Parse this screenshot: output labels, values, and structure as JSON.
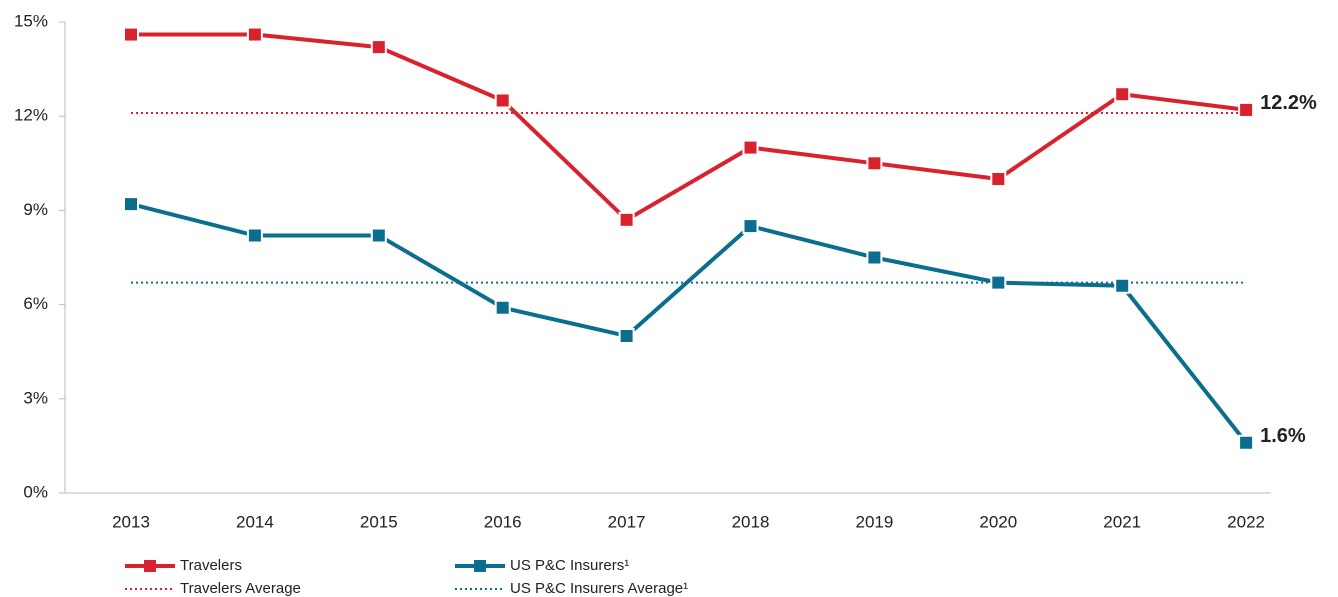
{
  "chart_data": {
    "type": "line",
    "categories": [
      "2013",
      "2014",
      "2015",
      "2016",
      "2017",
      "2018",
      "2019",
      "2020",
      "2021",
      "2022"
    ],
    "series": [
      {
        "name": "Travelers",
        "color": "#d8232f",
        "values": [
          14.6,
          14.6,
          14.2,
          12.5,
          8.7,
          11.0,
          10.5,
          10.0,
          12.7,
          12.2
        ],
        "value_labels": [
          null,
          null,
          null,
          null,
          null,
          null,
          null,
          null,
          null,
          "12.2%"
        ]
      },
      {
        "name": "US P&C Insurers¹",
        "color": "#0b6e8e",
        "values": [
          9.2,
          8.2,
          8.2,
          5.9,
          5.0,
          8.5,
          7.5,
          6.7,
          6.6,
          1.6
        ],
        "value_labels": [
          null,
          null,
          null,
          null,
          null,
          null,
          null,
          null,
          null,
          "1.6%"
        ]
      }
    ],
    "average_lines": [
      {
        "name": "Travelers Average",
        "color": "#d8232f",
        "value": 12.1
      },
      {
        "name": "US P&C Insurers Average¹",
        "color": "#0b6e8e",
        "value": 6.7
      }
    ],
    "ylim": [
      0,
      15
    ],
    "yticks": [
      {
        "value": 0,
        "label": "0%"
      },
      {
        "value": 3,
        "label": "3%"
      },
      {
        "value": 6,
        "label": "6%"
      },
      {
        "value": 9,
        "label": "9%"
      },
      {
        "value": 12,
        "label": "12%"
      },
      {
        "value": 15,
        "label": "15%"
      }
    ],
    "grid": false
  }
}
